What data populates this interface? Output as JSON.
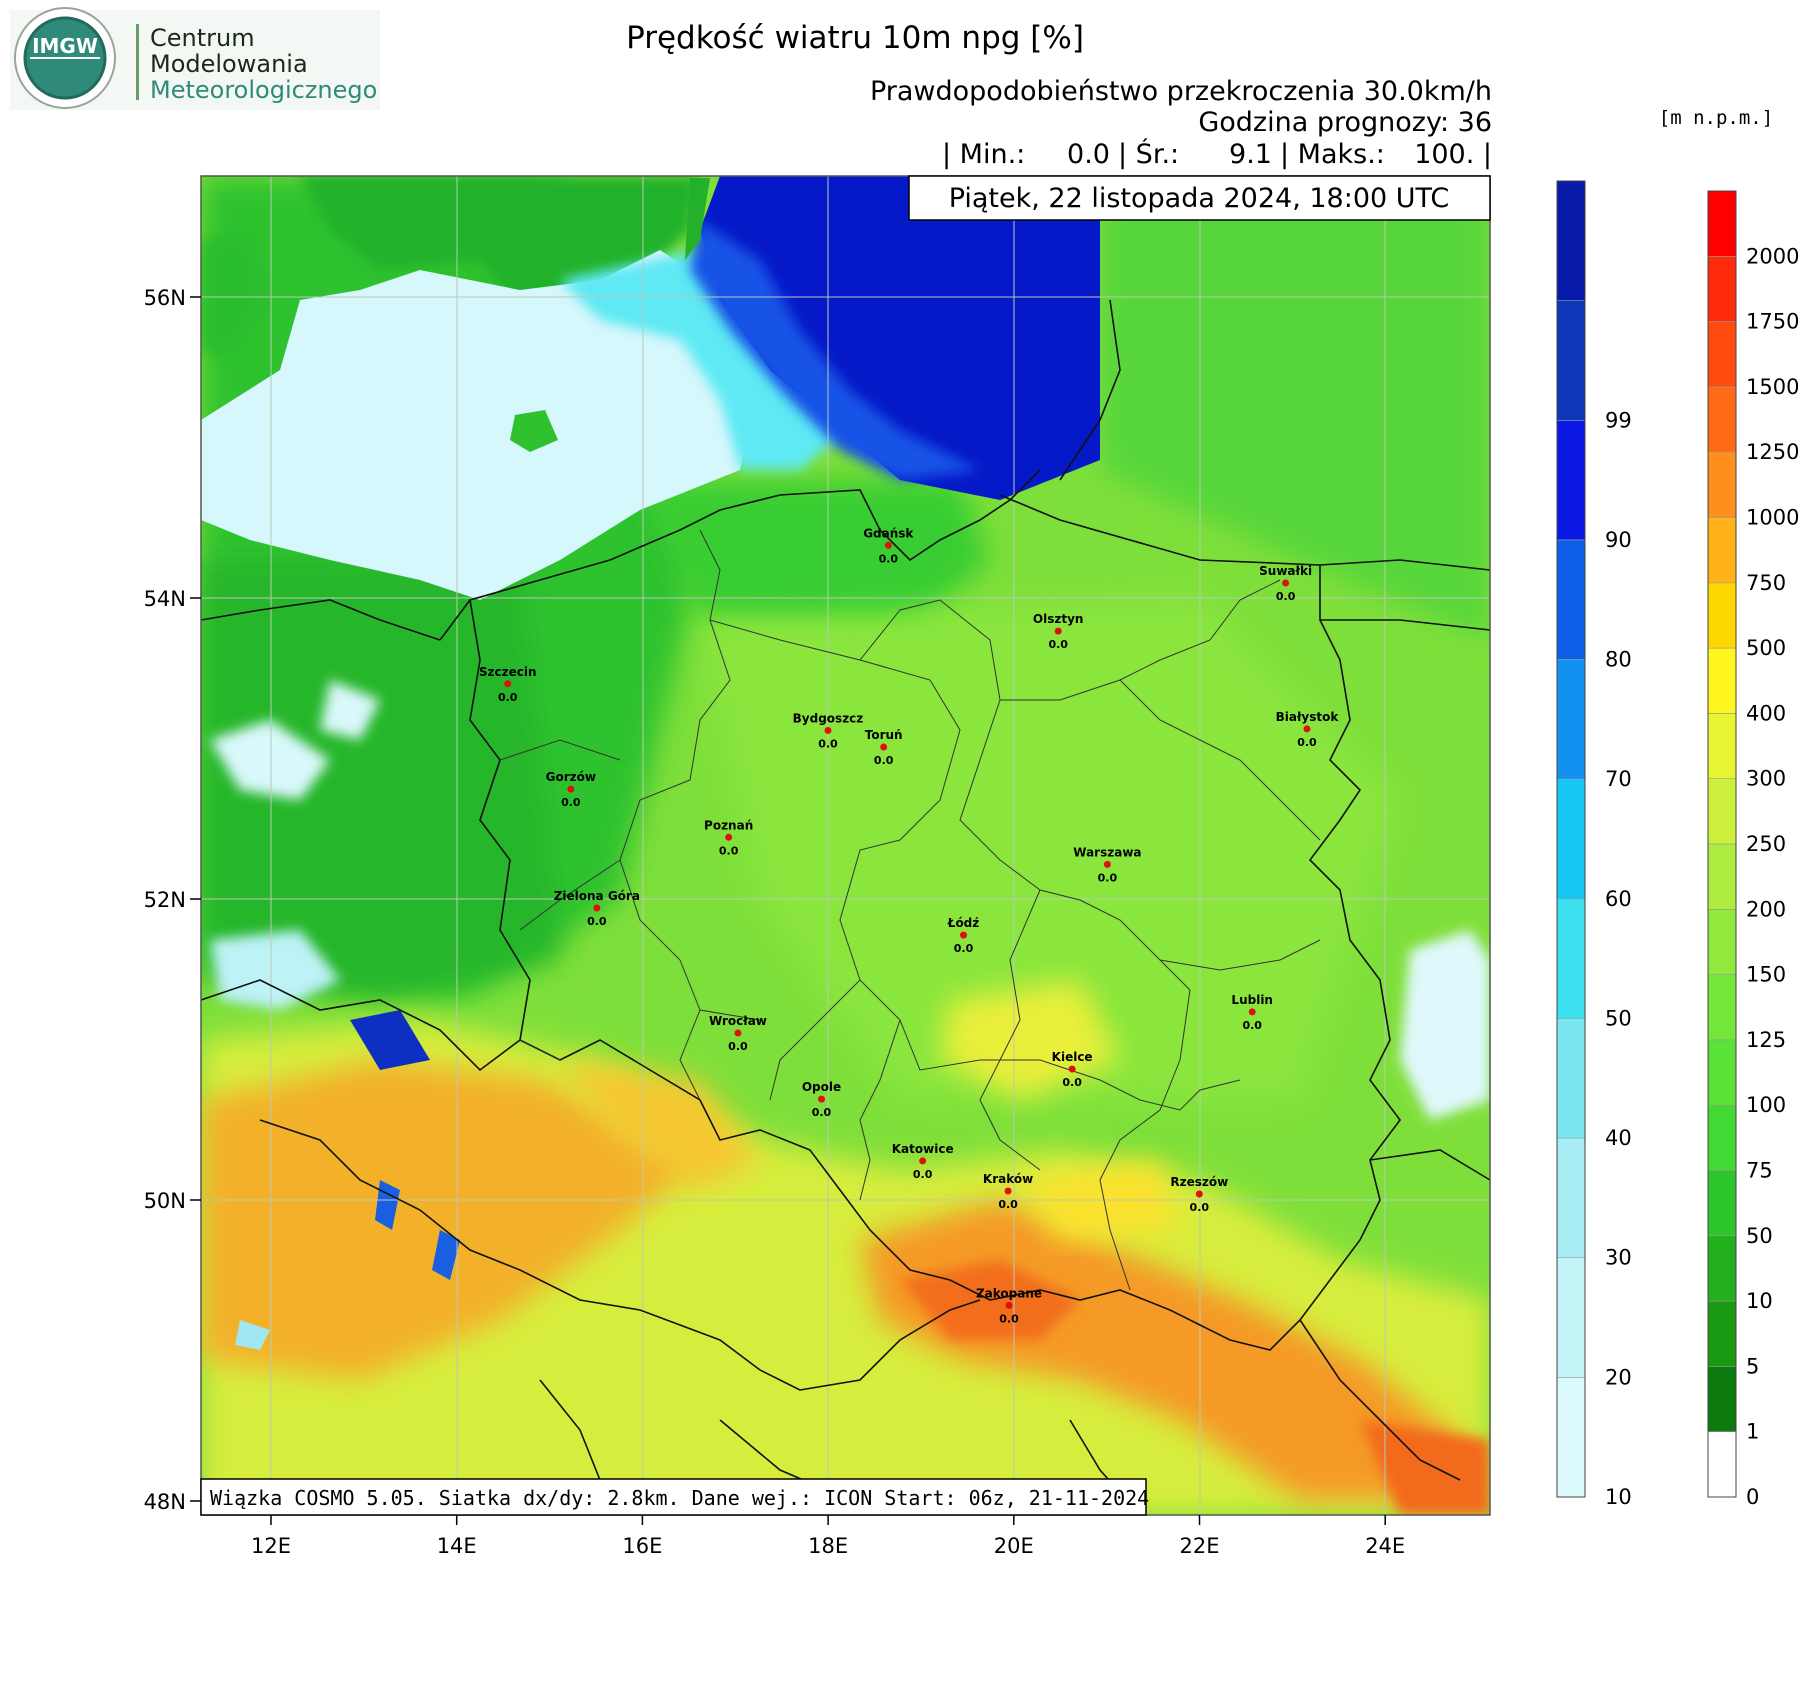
{
  "logo": {
    "emblem_text": "IMGW",
    "org_lines": [
      "Centrum",
      "Modelowania",
      "Meteorologicznego"
    ]
  },
  "header": {
    "title": "Prędkość wiatru 10m npg [%]",
    "subtitle": "Prawdopodobieństwo przekroczenia 30.0km/h",
    "forecast_hour": "Godzina prognozy: 36",
    "stats": {
      "min_label": "| Min.:",
      "min_value": "0.0",
      "avg_label": "| Śr.:",
      "avg_value": "9.1",
      "max_label": "| Maks.:",
      "max_value": "100. |"
    },
    "date_box": "Piątek, 22 listopada 2024, 18:00 UTC"
  },
  "footer_note": "Wiązka COSMO 5.05. Siatka dx/dy: 2.8km. Dane wej.: ICON Start: 06z, 21-11-2024",
  "axes": {
    "lon_ticks": [
      "12E",
      "14E",
      "16E",
      "18E",
      "20E",
      "22E",
      "24E"
    ],
    "lat_ticks": [
      "56N",
      "54N",
      "52N",
      "50N",
      "48N"
    ]
  },
  "cities": [
    {
      "name": "Gdańsk",
      "value": "0.0",
      "lon": 18.65,
      "lat": 54.35
    },
    {
      "name": "Suwałki",
      "value": "0.0",
      "lon": 22.93,
      "lat": 54.1
    },
    {
      "name": "Olsztyn",
      "value": "0.0",
      "lon": 20.48,
      "lat": 53.78
    },
    {
      "name": "Szczecin",
      "value": "0.0",
      "lon": 14.55,
      "lat": 53.43
    },
    {
      "name": "Bydgoszcz",
      "value": "0.0",
      "lon": 18.0,
      "lat": 53.12
    },
    {
      "name": "Toruń",
      "value": "0.0",
      "lon": 18.6,
      "lat": 53.01
    },
    {
      "name": "Białystok",
      "value": "0.0",
      "lon": 23.16,
      "lat": 53.13
    },
    {
      "name": "Gorzów",
      "value": "0.0",
      "lon": 15.23,
      "lat": 52.73
    },
    {
      "name": "Poznań",
      "value": "0.0",
      "lon": 16.93,
      "lat": 52.41
    },
    {
      "name": "Warszawa",
      "value": "0.0",
      "lon": 21.01,
      "lat": 52.23
    },
    {
      "name": "Zielona Góra",
      "value": "0.0",
      "lon": 15.51,
      "lat": 51.94
    },
    {
      "name": "Łódź",
      "value": "0.0",
      "lon": 19.46,
      "lat": 51.76
    },
    {
      "name": "Lublin",
      "value": "0.0",
      "lon": 22.57,
      "lat": 51.25
    },
    {
      "name": "Wrocław",
      "value": "0.0",
      "lon": 17.03,
      "lat": 51.11
    },
    {
      "name": "Kielce",
      "value": "0.0",
      "lon": 20.63,
      "lat": 50.87
    },
    {
      "name": "Opole",
      "value": "0.0",
      "lon": 17.93,
      "lat": 50.67
    },
    {
      "name": "Katowice",
      "value": "0.0",
      "lon": 19.02,
      "lat": 50.26
    },
    {
      "name": "Kraków",
      "value": "0.0",
      "lon": 19.94,
      "lat": 50.06
    },
    {
      "name": "Rzeszów",
      "value": "0.0",
      "lon": 22.0,
      "lat": 50.04
    },
    {
      "name": "Zakopane",
      "value": "0.0",
      "lon": 19.95,
      "lat": 49.3
    }
  ],
  "legend_probability": {
    "labels": [
      "10",
      "20",
      "30",
      "40",
      "50",
      "60",
      "70",
      "80",
      "90",
      "99"
    ],
    "colors": [
      "#dcf9fb",
      "#c4f3f7",
      "#a8edf3",
      "#7ae6f0",
      "#3ce0ee",
      "#17c7f3",
      "#1291f0",
      "#0f5ee8",
      "#0c18e4",
      "#0d36b8",
      "#071aa8"
    ]
  },
  "legend_elevation": {
    "unit": "[m n.p.m.]",
    "labels": [
      "0",
      "1",
      "5",
      "10",
      "50",
      "75",
      "100",
      "125",
      "150",
      "200",
      "250",
      "300",
      "400",
      "500",
      "750",
      "1000",
      "1250",
      "1500",
      "1750",
      "2000"
    ],
    "colors": [
      "#ffffff",
      "#0d7a0d",
      "#1a9a12",
      "#22b11c",
      "#2ec72b",
      "#43d935",
      "#5ae238",
      "#75e63a",
      "#91e93e",
      "#aeec3f",
      "#ccf03b",
      "#e8f532",
      "#fff51f",
      "#ffd700",
      "#ffb21a",
      "#ff8f1c",
      "#ff6b14",
      "#ff4a10",
      "#ff2a0c",
      "#ff0000"
    ]
  },
  "colors": {
    "sea_blue": "#0416c4",
    "sea_cyan": "#14e6f6",
    "sea_pale": "#d7f7fb",
    "land_dark": "#22b52a",
    "land_mid": "#4ed83a",
    "land_light": "#8ee23c",
    "mountain_yellow": "#f2e030",
    "mountain_orange": "#f5a22a",
    "mountain_red": "#f27a22"
  }
}
